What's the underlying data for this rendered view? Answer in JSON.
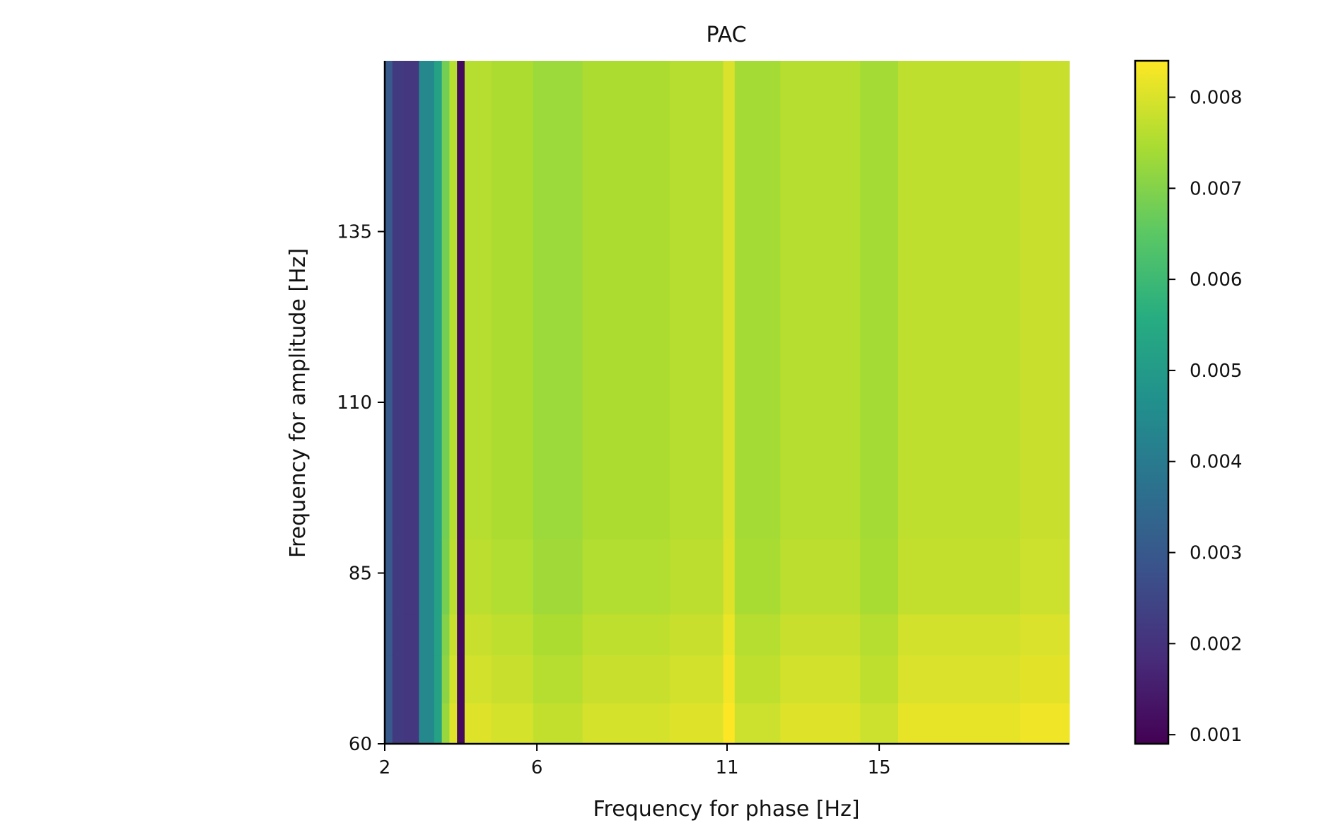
{
  "chart_data": {
    "type": "heatmap",
    "title": "PAC",
    "xlabel": "Frequency for phase [Hz]",
    "ylabel": "Frequency for amplitude [Hz]",
    "x_ticks": [
      2,
      6,
      11,
      15
    ],
    "y_ticks": [
      60,
      85,
      110,
      135
    ],
    "xlim": [
      2,
      20
    ],
    "ylim": [
      60,
      160
    ],
    "colormap": "viridis",
    "colorbar": {
      "min": 0.0009,
      "max": 0.0084,
      "ticks": [
        0.001,
        0.002,
        0.003,
        0.004,
        0.005,
        0.006,
        0.007,
        0.008
      ],
      "tick_labels": [
        "0.001",
        "0.002",
        "0.003",
        "0.004",
        "0.005",
        "0.006",
        "0.007",
        "0.008"
      ]
    },
    "grid": false,
    "phase_bins": [
      {
        "x": [
          2.0,
          2.2
        ],
        "value": 0.003
      },
      {
        "x": [
          2.2,
          2.5
        ],
        "value": 0.0022
      },
      {
        "x": [
          2.5,
          2.9
        ],
        "value": 0.0021
      },
      {
        "x": [
          2.9,
          3.3
        ],
        "value": 0.0044
      },
      {
        "x": [
          3.3,
          3.5
        ],
        "value": 0.0052
      },
      {
        "x": [
          3.5,
          3.7
        ],
        "value": 0.0068
      },
      {
        "x": [
          3.7,
          3.9
        ],
        "value": 0.0076
      },
      {
        "x": [
          3.9,
          4.1
        ],
        "value": 0.0011
      },
      {
        "x": [
          4.1,
          4.8
        ],
        "value": 0.0076
      },
      {
        "x": [
          4.8,
          5.9
        ],
        "value": 0.0075
      },
      {
        "x": [
          5.9,
          7.2
        ],
        "value": 0.0073
      },
      {
        "x": [
          7.2,
          9.5
        ],
        "value": 0.0075
      },
      {
        "x": [
          9.5,
          10.9
        ],
        "value": 0.0076
      },
      {
        "x": [
          10.9,
          11.2
        ],
        "value": 0.008
      },
      {
        "x": [
          11.2,
          12.4
        ],
        "value": 0.0074
      },
      {
        "x": [
          12.4,
          14.5
        ],
        "value": 0.0076
      },
      {
        "x": [
          14.5,
          15.5
        ],
        "value": 0.0074
      },
      {
        "x": [
          15.5,
          18.7
        ],
        "value": 0.0077
      },
      {
        "x": [
          18.7,
          20.0
        ],
        "value": 0.0078
      }
    ],
    "amplitude_rows": [
      {
        "y": [
          60,
          66
        ],
        "offset": 0.00045
      },
      {
        "y": [
          66,
          73
        ],
        "offset": 0.0003
      },
      {
        "y": [
          73,
          79
        ],
        "offset": 0.0002
      },
      {
        "y": [
          79,
          90
        ],
        "offset": 5e-05
      },
      {
        "y": [
          90,
          160
        ],
        "offset": 0.0
      }
    ]
  }
}
